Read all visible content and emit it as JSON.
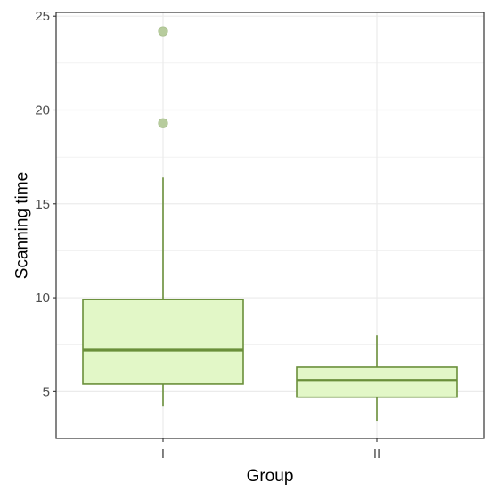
{
  "chart_data": {
    "type": "boxplot",
    "xlabel": "Group",
    "ylabel": "Scanning time",
    "categories": [
      "I",
      "II"
    ],
    "ylim": [
      2.5,
      25.2
    ],
    "y_ticks": [
      5,
      10,
      15,
      20,
      25
    ],
    "grid": true,
    "boxes": [
      {
        "category": "I",
        "whisker_low": 4.2,
        "q1": 5.4,
        "median": 7.2,
        "q3": 9.9,
        "whisker_high": 16.4,
        "outliers": [
          19.3,
          24.2
        ]
      },
      {
        "category": "II",
        "whisker_low": 3.4,
        "q1": 4.7,
        "median": 5.6,
        "q3": 6.3,
        "whisker_high": 8.0,
        "outliers": []
      }
    ],
    "colors": {
      "box_fill": "#e2f7c7",
      "box_line": "#6a8f3a",
      "outlier_fill": "#b7cc9d",
      "grid": "#ebebeb",
      "panel_border": "#333333"
    }
  }
}
